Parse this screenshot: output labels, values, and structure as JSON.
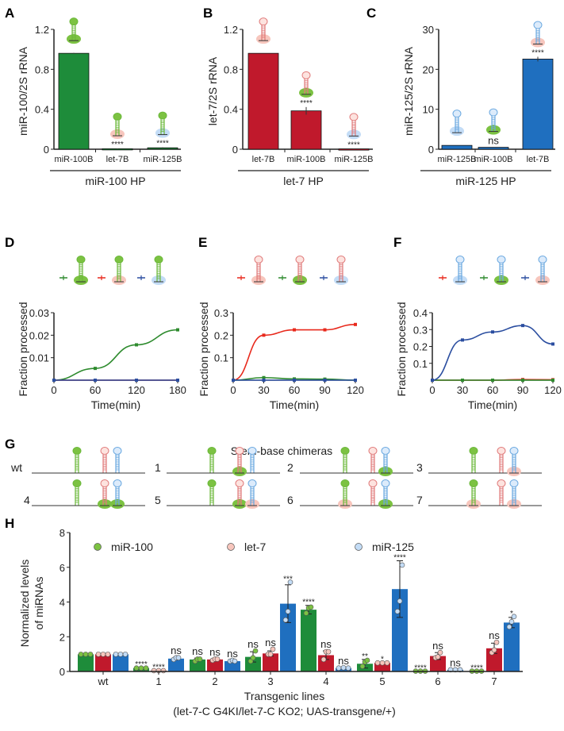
{
  "colors": {
    "green_bar": "#1e8c3a",
    "red_bar": "#c0192c",
    "blue_bar": "#1f6fbf",
    "green_line": "#2e8b2e",
    "red_line": "#e8291c",
    "blue_line": "#2b4ea0",
    "green_hp": "#6bb83a",
    "red_hp": "#e07a7a",
    "blue_hp": "#6aa8e0",
    "green_base": "#7cc242",
    "pink_base": "#f7c6bd",
    "blue_base": "#c3dcf6"
  },
  "chart_data": [
    {
      "panel": "A",
      "type": "bar",
      "ylabel": "miR-100/2S rRNA",
      "ylim": [
        0,
        1.2
      ],
      "yticks": [
        "0",
        "0.4",
        "0.8",
        "1.2"
      ],
      "categories": [
        "miR-100B",
        "let-7B",
        "miR-125B"
      ],
      "values": [
        1.0,
        0.005,
        0.015
      ],
      "errors": [
        0.005,
        0.003,
        0.005
      ],
      "significance": [
        "",
        "****",
        "****"
      ],
      "bar_color": "green",
      "hairpins": [
        [
          "green",
          "green"
        ],
        [
          "green",
          "pink"
        ],
        [
          "green",
          "blue"
        ]
      ],
      "group_label": "miR-100 HP"
    },
    {
      "panel": "B",
      "type": "bar",
      "ylabel": "let-7/2S rRNA",
      "ylim": [
        0,
        1.2
      ],
      "yticks": [
        "0",
        "0.4",
        "0.8",
        "1.2"
      ],
      "categories": [
        "let-7B",
        "miR-100B",
        "miR-125B"
      ],
      "values": [
        1.0,
        0.4,
        0.003
      ],
      "errors": [
        0.0,
        0.04,
        0.002
      ],
      "significance": [
        "",
        "****",
        "****"
      ],
      "bar_color": "red",
      "hairpins": [
        [
          "red",
          "pink"
        ],
        [
          "red",
          "green"
        ],
        [
          "red",
          "blue"
        ]
      ],
      "group_label": "let-7 HP"
    },
    {
      "panel": "C",
      "type": "bar",
      "ylabel": "miR-125/2S rRNA",
      "ylim": [
        0,
        30
      ],
      "yticks": [
        "0",
        "10",
        "20",
        "30"
      ],
      "categories": [
        "miR-125B",
        "miR-100B",
        "let-7B"
      ],
      "values": [
        1.0,
        0.5,
        23.5
      ],
      "errors": [
        0.0,
        0.0,
        0.6
      ],
      "significance": [
        "",
        "ns",
        "****"
      ],
      "bar_color": "blue",
      "hairpins": [
        [
          "blue",
          "blue"
        ],
        [
          "blue",
          "green"
        ],
        [
          "blue",
          "pink"
        ]
      ],
      "group_label": "miR-125 HP"
    },
    {
      "panel": "D",
      "type": "line",
      "ylabel": "Fraction processed",
      "xlabel": "Time(min)",
      "ylim": [
        0,
        0.03
      ],
      "yticks": [
        "0.01",
        "0.02",
        "0.03"
      ],
      "xticks": [
        "0",
        "60",
        "120",
        "180"
      ],
      "x": [
        0,
        60,
        120,
        180
      ],
      "xlim": [
        0,
        180
      ],
      "series": [
        {
          "color": "green",
          "values": [
            0,
            0.0055,
            0.0165,
            0.0235
          ],
          "hairpin": [
            "green",
            "green"
          ]
        },
        {
          "color": "red",
          "values": [
            0,
            0,
            0,
            0
          ],
          "hairpin": [
            "green",
            "pink"
          ]
        },
        {
          "color": "blue",
          "values": [
            0,
            0,
            0,
            0
          ],
          "hairpin": [
            "green",
            "blue"
          ]
        }
      ]
    },
    {
      "panel": "E",
      "type": "line",
      "ylabel": "Fraction processed",
      "xlabel": "Time(min)",
      "ylim": [
        0,
        0.3
      ],
      "yticks": [
        "0.1",
        "0.2",
        "0.3"
      ],
      "xticks": [
        "0",
        "30",
        "60",
        "90",
        "120"
      ],
      "x": [
        0,
        30,
        60,
        90,
        120
      ],
      "xlim": [
        0,
        120
      ],
      "series": [
        {
          "color": "red",
          "values": [
            0,
            0.21,
            0.235,
            0.235,
            0.26
          ],
          "hairpin": [
            "red",
            "pink"
          ]
        },
        {
          "color": "green",
          "values": [
            0,
            0.012,
            0.006,
            0.005,
            0.0
          ],
          "hairpin": [
            "red",
            "green"
          ]
        },
        {
          "color": "blue",
          "values": [
            0,
            0,
            0,
            0,
            0
          ],
          "hairpin": [
            "red",
            "blue"
          ]
        }
      ]
    },
    {
      "panel": "F",
      "type": "line",
      "ylabel": "Fraction processed",
      "xlabel": "Time(min)",
      "ylim": [
        0,
        0.4
      ],
      "yticks": [
        "0.1",
        "0.2",
        "0.3",
        "0.4"
      ],
      "xticks": [
        "0",
        "30",
        "60",
        "90",
        "120"
      ],
      "x": [
        0,
        30,
        60,
        90,
        120
      ],
      "xlim": [
        0,
        120
      ],
      "series": [
        {
          "color": "red",
          "values": [
            0,
            0,
            0,
            0.004,
            0.003
          ],
          "hairpin": [
            "blue",
            "blue"
          ]
        },
        {
          "color": "green",
          "values": [
            0,
            0,
            0,
            0,
            0
          ],
          "hairpin": [
            "blue",
            "green"
          ]
        },
        {
          "color": "blue",
          "values": [
            0,
            0.25,
            0.3,
            0.34,
            0.225
          ],
          "hairpin": [
            "blue",
            "pink"
          ]
        }
      ]
    },
    {
      "panel": "H",
      "type": "bar",
      "ylabel": [
        "Normalized levels",
        "of miRNAs"
      ],
      "xlabel": "Transgenic lines",
      "xlabel_sub": "(let-7-C G4KI/let-7-C KO2; UAS-transgene/+)",
      "ylim": [
        0,
        8
      ],
      "yticks": [
        "0",
        "2",
        "4",
        "6",
        "8"
      ],
      "categories": [
        "wt",
        "1",
        "2",
        "3",
        "4",
        "5",
        "6",
        "7"
      ],
      "legend": "top",
      "series": [
        {
          "name": "miR-100",
          "color": "green",
          "values": [
            1.0,
            0.2,
            0.7,
            0.85,
            3.6,
            0.45,
            0.02,
            0.02
          ],
          "errors": [
            0,
            0.03,
            0.08,
            0.3,
            0.25,
            0.25,
            0.01,
            0.01
          ],
          "points": [
            [
              1,
              1,
              1
            ],
            [
              0.2,
              0.2,
              0.2
            ],
            [
              0.6,
              0.72,
              0.72
            ],
            [
              0.6,
              0.8,
              1.2
            ],
            [
              3.4,
              3.7,
              3.75
            ],
            [
              0.3,
              0.55,
              0.65
            ],
            [
              0.02,
              0.02,
              0.02
            ],
            [
              0.02,
              0.02,
              0.02
            ]
          ],
          "significance": [
            "",
            "****",
            "ns",
            "ns",
            "****",
            "**",
            "****",
            "****"
          ]
        },
        {
          "name": "let-7",
          "color": "red",
          "values": [
            1.0,
            0.05,
            0.7,
            1.05,
            0.95,
            0.5,
            0.9,
            1.35
          ],
          "errors": [
            0,
            0.02,
            0.05,
            0.15,
            0.25,
            0.03,
            0.2,
            0.3
          ],
          "points": [
            [
              1,
              1,
              1
            ],
            [
              0.05,
              0.05,
              0.05
            ],
            [
              0.65,
              0.72,
              0.72
            ],
            [
              1.0,
              1.0,
              1.3
            ],
            [
              0.7,
              1.15,
              1.15
            ],
            [
              0.5,
              0.5,
              0.5
            ],
            [
              0.8,
              0.85,
              1.1
            ],
            [
              1.1,
              1.25,
              1.7
            ]
          ],
          "significance": [
            "",
            "****",
            "ns",
            "ns",
            "ns",
            "*",
            "ns",
            "ns"
          ]
        },
        {
          "name": "miR-125",
          "color": "blue",
          "values": [
            1.0,
            0.75,
            0.6,
            3.95,
            0.2,
            4.8,
            0.1,
            2.85
          ],
          "errors": [
            0,
            0.08,
            0.05,
            1.1,
            0.03,
            1.65,
            0.02,
            0.3
          ],
          "points": [
            [
              1,
              1,
              1
            ],
            [
              0.7,
              0.8,
              0.8
            ],
            [
              0.6,
              0.65,
              0.6
            ],
            [
              3.0,
              3.5,
              5.2
            ],
            [
              0.2,
              0.22,
              0.2
            ],
            [
              3.5,
              4.1,
              6.2
            ],
            [
              0.1,
              0.1,
              0.1
            ],
            [
              2.6,
              2.9,
              3.2
            ]
          ],
          "significance": [
            "",
            "ns",
            "ns",
            "***",
            "ns",
            "****",
            "ns",
            "*"
          ]
        }
      ]
    }
  ],
  "panel_g": {
    "title": "Stem-base chimeras",
    "constructs": [
      {
        "label": "wt",
        "bases": [
          "",
          "",
          ""
        ]
      },
      {
        "label": "1",
        "bases": [
          "",
          "green",
          ""
        ]
      },
      {
        "label": "2",
        "bases": [
          "",
          "",
          "green"
        ]
      },
      {
        "label": "3",
        "bases": [
          "",
          "",
          "pink"
        ]
      },
      {
        "label": "4",
        "bases": [
          "",
          "green",
          "green"
        ]
      },
      {
        "label": "5",
        "bases": [
          "",
          "green",
          "pink"
        ]
      },
      {
        "label": "6",
        "bases": [
          "pink",
          "",
          "green"
        ]
      },
      {
        "label": "7",
        "bases": [
          "pink",
          "",
          "pink"
        ]
      }
    ]
  },
  "panel_letters": [
    "A",
    "B",
    "C",
    "D",
    "E",
    "F",
    "G",
    "H"
  ]
}
